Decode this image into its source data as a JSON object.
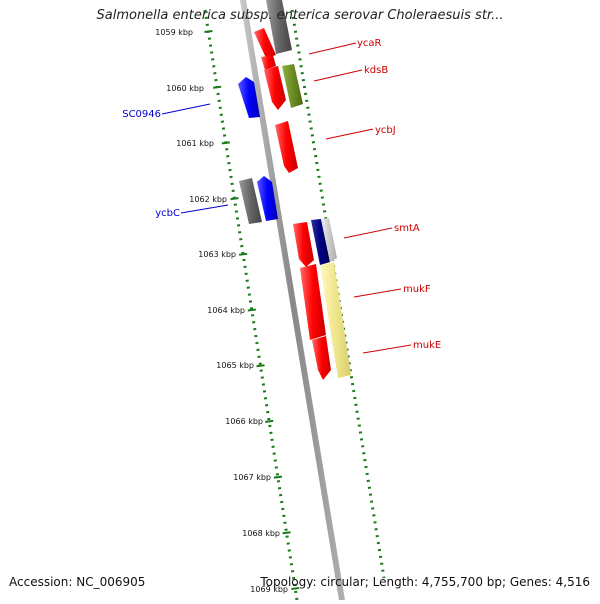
{
  "title": "Salmonella enterica subsp. enterica serovar Choleraesuis str...",
  "footer": {
    "accession": "Accession: NC_006905",
    "summary": "Topology: circular; Length: 4,755,700 bp; Genes: 4,516"
  },
  "colors": {
    "background": "#ffffff",
    "backbone": "#8a8a8a",
    "tick": "#1a7a1a",
    "gene_red": "#ff0000",
    "gene_blue": "#0000ff",
    "gene_gray": "#666666",
    "gene_olive": "#6b8e23",
    "gene_navy": "#000080",
    "gene_khaki": "#f0e68c",
    "label_red": "#cc0000",
    "label_blue": "#0000cc"
  },
  "scale_labels": [
    "1059 kbp",
    "1060 kbp",
    "1061 kbp",
    "1062 kbp",
    "1063 kbp",
    "1064 kbp",
    "1065 kbp",
    "1066 kbp",
    "1067 kbp",
    "1068 kbp",
    "1069 kbp"
  ],
  "gene_labels_right": [
    "ycaR",
    "kdsB",
    "ycbJ",
    "smtA",
    "mukF",
    "mukE"
  ],
  "gene_labels_left": [
    "SC0946",
    "ycbC"
  ]
}
